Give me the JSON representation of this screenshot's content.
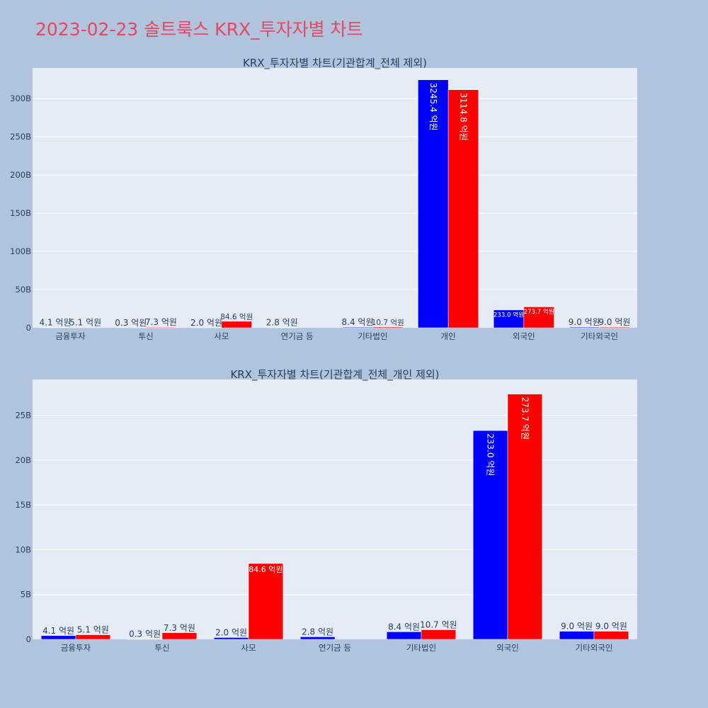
{
  "page": {
    "title": "2023-02-23 솔트룩스 KRX_투자자별 차트"
  },
  "colors": {
    "buy": "#0000ff",
    "sell": "#ff0000",
    "plot_bg": "#e5ecf6",
    "page_bg": "#b0c4de",
    "title": "#e8475e",
    "text": "#2a3f5f"
  },
  "chart_data": [
    {
      "type": "bar",
      "title": "KRX_투자자별 차트(기관합계_전체 제외)",
      "categories": [
        "금융투자",
        "투신",
        "사모",
        "연기금 등",
        "기타법인",
        "개인",
        "외국인",
        "기타외국인"
      ],
      "series": [
        {
          "values": [
            0.41,
            0.03,
            0.2,
            0.28,
            0.84,
            324.54,
            23.3,
            0.9
          ],
          "labels": [
            "4.1 억원",
            "0.3 억원",
            "2.0 억원",
            "2.8 억원",
            "8.4 억원",
            "3245.4 억원",
            "233.0 억원",
            "9.0 억원"
          ]
        },
        {
          "values": [
            0.51,
            0.73,
            8.46,
            0,
            1.07,
            311.48,
            27.37,
            0.9
          ],
          "labels": [
            "5.1 억원",
            "7.3 억원",
            "84.6 억원",
            "",
            "10.7 억원",
            "3114.8 억원",
            "273.7 억원",
            "9.0 억원"
          ]
        }
      ],
      "ylim": [
        0,
        340
      ],
      "yticks": [
        0,
        50,
        100,
        150,
        200,
        250,
        300
      ],
      "ytick_labels": [
        "0",
        "50B",
        "100B",
        "150B",
        "200B",
        "250B",
        "300B"
      ],
      "grid": true
    },
    {
      "type": "bar",
      "title": "KRX_투자자별 차트(기관합계_전체_개인 제외)",
      "categories": [
        "금융투자",
        "투신",
        "사모",
        "연기금 등",
        "기타법인",
        "외국인",
        "기타외국인"
      ],
      "series": [
        {
          "values": [
            0.41,
            0.03,
            0.2,
            0.28,
            0.84,
            23.3,
            0.9
          ],
          "labels": [
            "4.1 억원",
            "0.3 억원",
            "2.0 억원",
            "2.8 억원",
            "8.4 억원",
            "233.0 억원",
            "9.0 억원"
          ]
        },
        {
          "values": [
            0.51,
            0.73,
            8.46,
            0,
            1.07,
            27.37,
            0.9
          ],
          "labels": [
            "5.1 억원",
            "7.3 억원",
            "84.6 억원",
            "",
            "10.7 억원",
            "273.7 억원",
            "9.0 억원"
          ]
        }
      ],
      "ylim": [
        0,
        29
      ],
      "yticks": [
        0,
        5,
        10,
        15,
        20,
        25
      ],
      "ytick_labels": [
        "0",
        "5B",
        "10B",
        "15B",
        "20B",
        "25B"
      ],
      "grid": true
    }
  ]
}
